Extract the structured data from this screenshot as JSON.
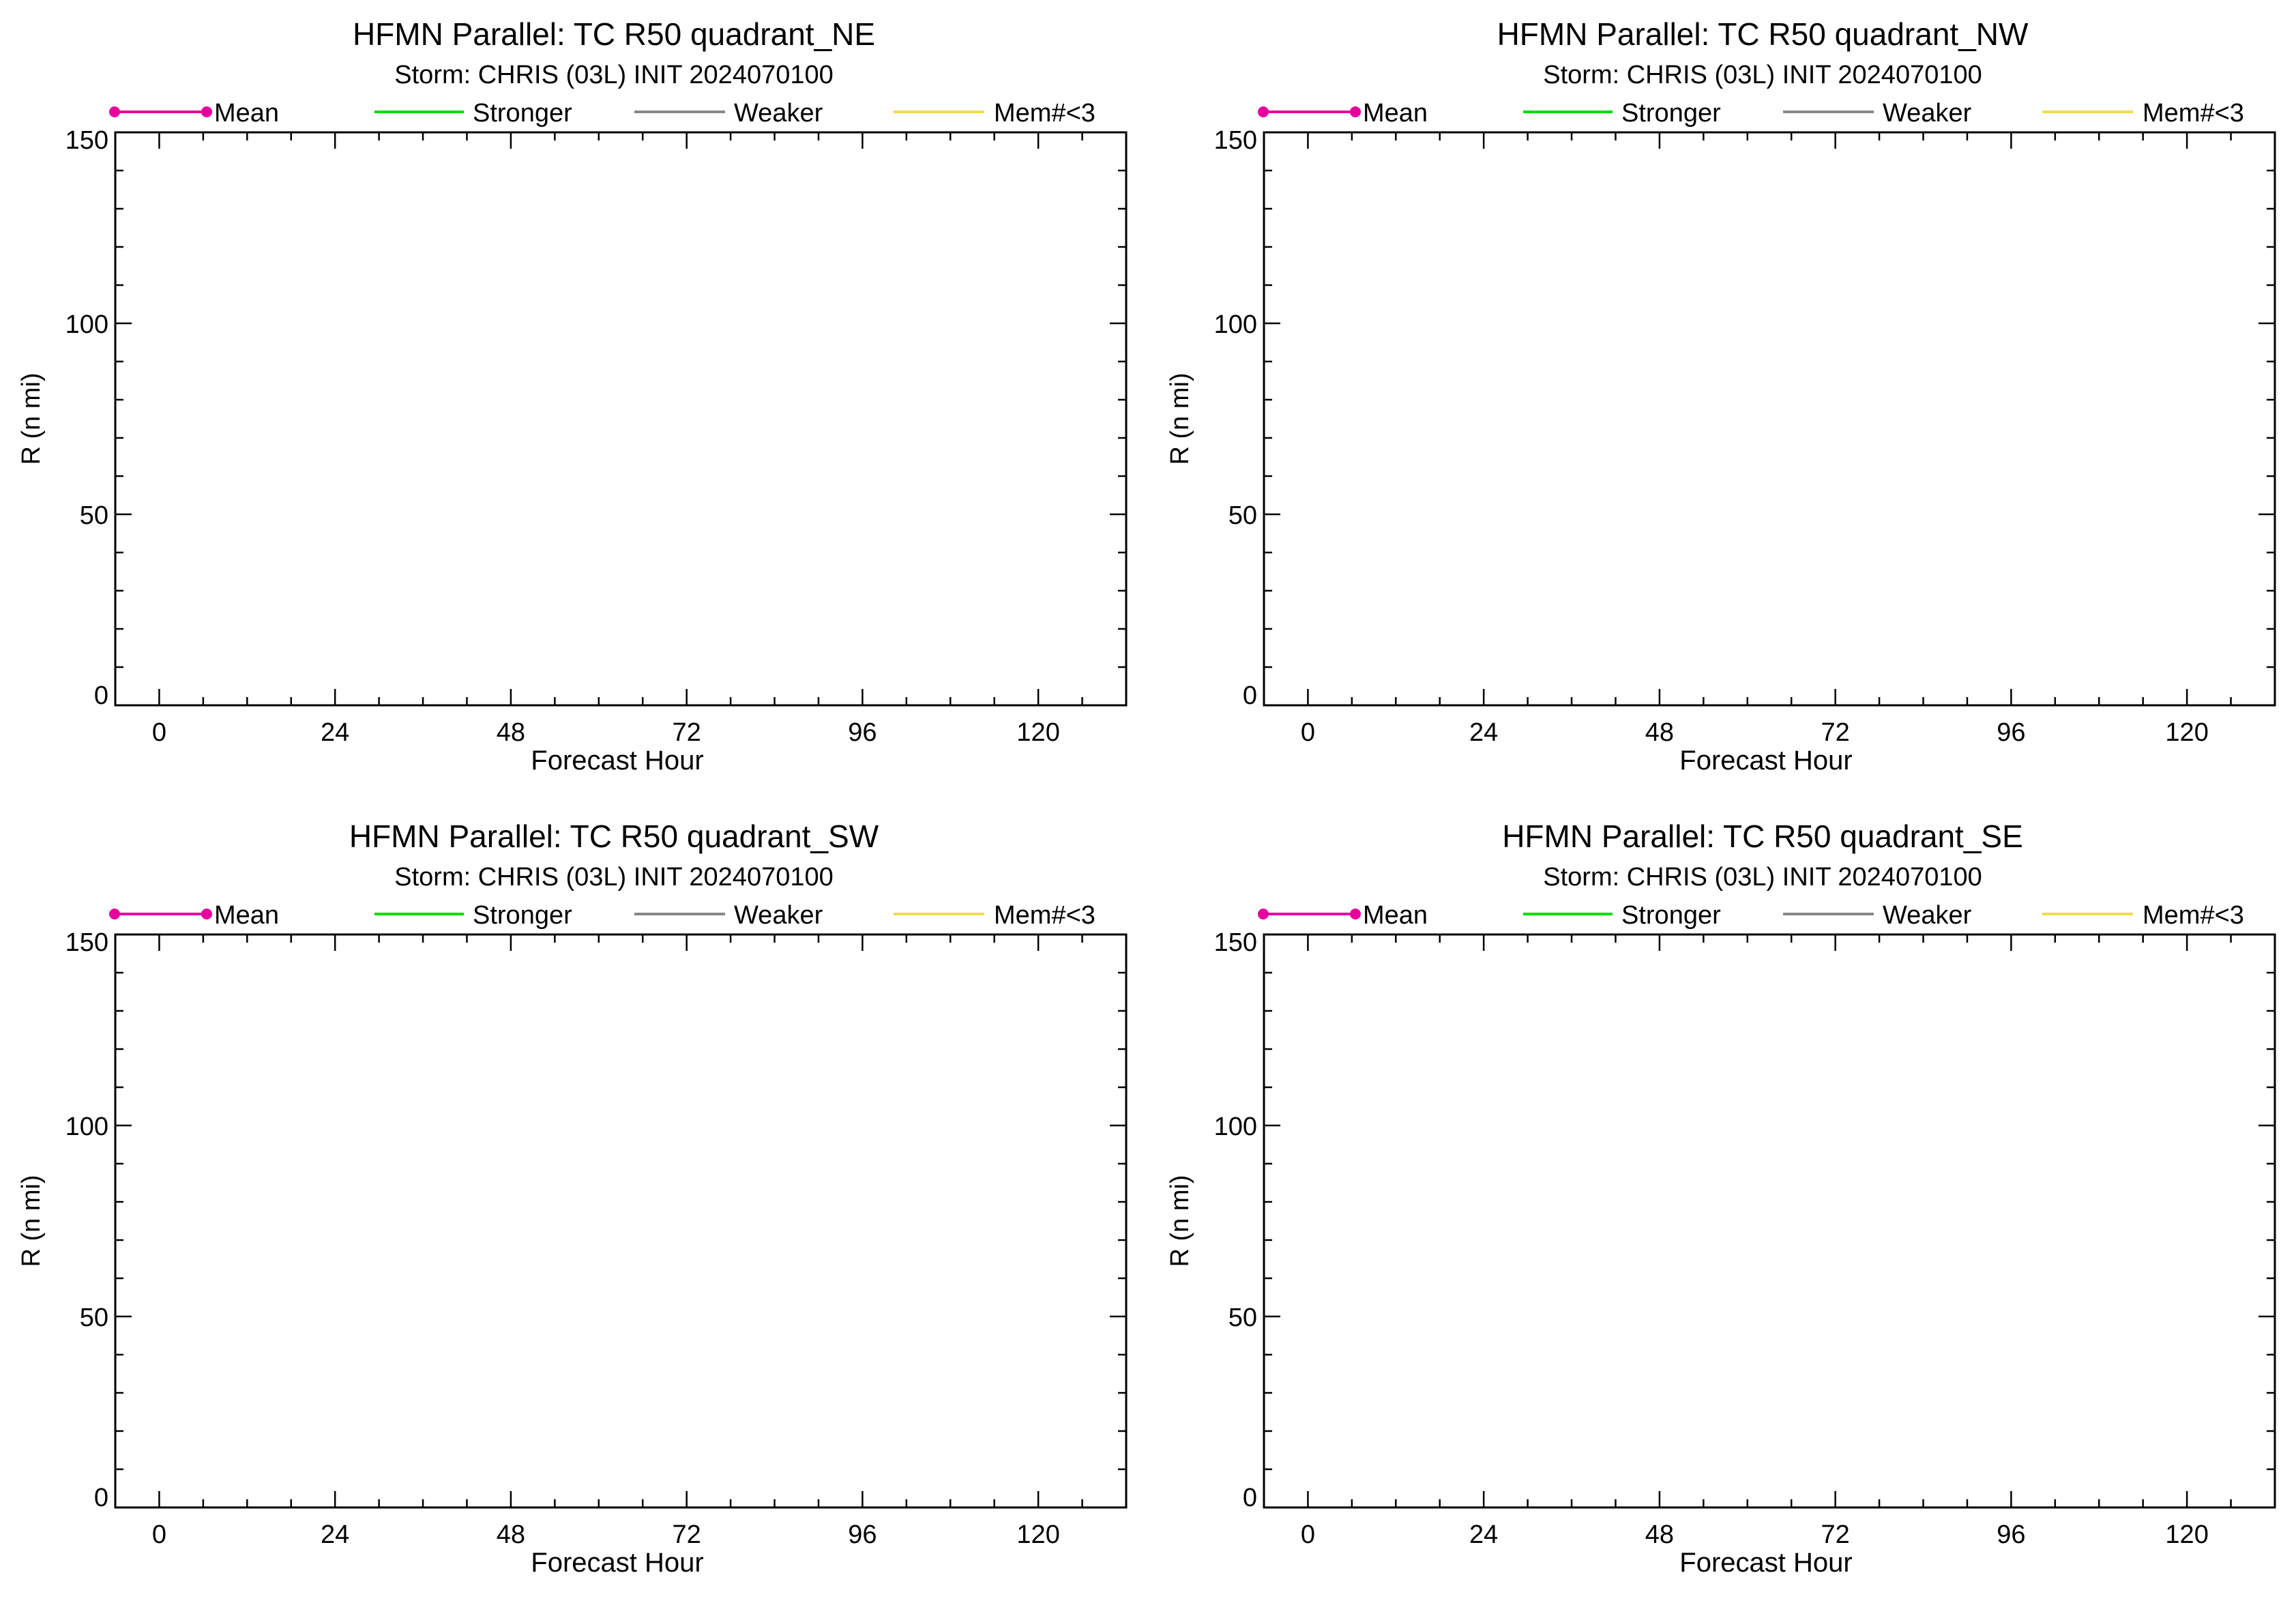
{
  "legend": [
    {
      "label": "Mean",
      "color": "#e6009e",
      "marker": "dot"
    },
    {
      "label": "Stronger",
      "color": "#00dd00",
      "marker": "line"
    },
    {
      "label": "Weaker",
      "color": "#888888",
      "marker": "line"
    },
    {
      "label": "Mem#<3",
      "color": "#f0dc50",
      "marker": "line"
    }
  ],
  "chart_data": [
    {
      "type": "line",
      "title": "HFMN Parallel: TC  R50 quadrant_NE",
      "subtitle": "Storm: CHRIS (03L) INIT 2024070100",
      "xlabel": "Forecast Hour",
      "ylabel": "R (n mi)",
      "xlim": [
        -6,
        132
      ],
      "ylim": [
        0,
        150
      ],
      "xticks": [
        0,
        24,
        48,
        72,
        96,
        120
      ],
      "yticks": [
        0,
        50,
        100,
        150
      ],
      "series": []
    },
    {
      "type": "line",
      "title": "HFMN Parallel: TC  R50 quadrant_NW",
      "subtitle": "Storm: CHRIS (03L) INIT 2024070100",
      "xlabel": "Forecast Hour",
      "ylabel": "R (n mi)",
      "xlim": [
        -6,
        132
      ],
      "ylim": [
        0,
        150
      ],
      "xticks": [
        0,
        24,
        48,
        72,
        96,
        120
      ],
      "yticks": [
        0,
        50,
        100,
        150
      ],
      "series": []
    },
    {
      "type": "line",
      "title": "HFMN Parallel: TC  R50 quadrant_SW",
      "subtitle": "Storm: CHRIS (03L) INIT 2024070100",
      "xlabel": "Forecast Hour",
      "ylabel": "R (n mi)",
      "xlim": [
        -6,
        132
      ],
      "ylim": [
        0,
        150
      ],
      "xticks": [
        0,
        24,
        48,
        72,
        96,
        120
      ],
      "yticks": [
        0,
        50,
        100,
        150
      ],
      "series": []
    },
    {
      "type": "line",
      "title": "HFMN Parallel: TC  R50 quadrant_SE",
      "subtitle": "Storm: CHRIS (03L) INIT 2024070100",
      "xlabel": "Forecast Hour",
      "ylabel": "R (n mi)",
      "xlim": [
        -6,
        132
      ],
      "ylim": [
        0,
        150
      ],
      "xticks": [
        0,
        24,
        48,
        72,
        96,
        120
      ],
      "yticks": [
        0,
        50,
        100,
        150
      ],
      "series": []
    }
  ]
}
